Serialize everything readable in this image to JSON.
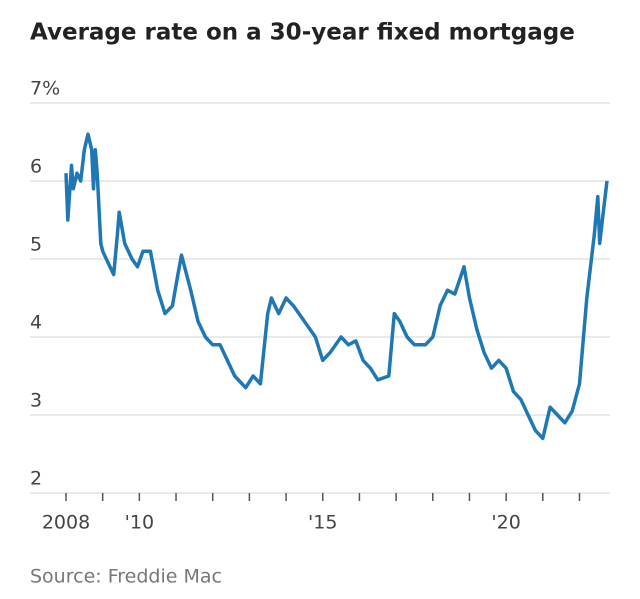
{
  "chart_data": {
    "type": "line",
    "title": "Average rate on a 30-year fixed mortgage",
    "source": "Source: Freddie Mac",
    "x": [
      2008.0,
      2008.05,
      2008.15,
      2008.2,
      2008.3,
      2008.4,
      2008.5,
      2008.6,
      2008.7,
      2008.75,
      2008.8,
      2008.85,
      2008.95,
      2009.0,
      2009.1,
      2009.3,
      2009.4,
      2009.45,
      2009.6,
      2009.8,
      2009.95,
      2010.1,
      2010.3,
      2010.5,
      2010.7,
      2010.9,
      2011.05,
      2011.15,
      2011.4,
      2011.6,
      2011.8,
      2012.0,
      2012.2,
      2012.4,
      2012.6,
      2012.9,
      2013.1,
      2013.3,
      2013.5,
      2013.6,
      2013.8,
      2014.0,
      2014.2,
      2014.5,
      2014.8,
      2015.0,
      2015.2,
      2015.5,
      2015.7,
      2015.9,
      2016.1,
      2016.3,
      2016.5,
      2016.8,
      2016.95,
      2017.1,
      2017.3,
      2017.5,
      2017.8,
      2018.0,
      2018.2,
      2018.4,
      2018.6,
      2018.85,
      2019.0,
      2019.2,
      2019.4,
      2019.6,
      2019.8,
      2020.0,
      2020.2,
      2020.4,
      2020.6,
      2020.8,
      2021.0,
      2021.2,
      2021.4,
      2021.6,
      2021.8,
      2022.0,
      2022.2,
      2022.4,
      2022.5,
      2022.55,
      2022.65,
      2022.75
    ],
    "series": [
      {
        "name": "30-year fixed",
        "color": "#1f78b4",
        "values": [
          6.1,
          5.5,
          6.2,
          5.9,
          6.1,
          6.0,
          6.4,
          6.6,
          6.4,
          5.9,
          6.4,
          6.1,
          5.2,
          5.1,
          5.0,
          4.8,
          5.3,
          5.6,
          5.2,
          5.0,
          4.9,
          5.1,
          5.1,
          4.6,
          4.3,
          4.4,
          4.8,
          5.05,
          4.6,
          4.2,
          4.0,
          3.9,
          3.9,
          3.7,
          3.5,
          3.35,
          3.5,
          3.4,
          4.3,
          4.5,
          4.3,
          4.5,
          4.4,
          4.2,
          4.0,
          3.7,
          3.8,
          4.0,
          3.9,
          3.95,
          3.7,
          3.6,
          3.45,
          3.5,
          4.3,
          4.2,
          4.0,
          3.9,
          3.9,
          4.0,
          4.4,
          4.6,
          4.55,
          4.9,
          4.5,
          4.1,
          3.8,
          3.6,
          3.7,
          3.6,
          3.3,
          3.2,
          3.0,
          2.8,
          2.7,
          3.1,
          3.0,
          2.9,
          3.05,
          3.4,
          4.5,
          5.3,
          5.8,
          5.2,
          5.6,
          6.0
        ]
      }
    ],
    "xlim": [
      2008,
      2022.75
    ],
    "xticks": [
      {
        "value": 2008,
        "label": "2008"
      },
      {
        "value": 2010,
        "label": "'10"
      },
      {
        "value": 2015,
        "label": "'15"
      },
      {
        "value": 2020,
        "label": "'20"
      }
    ],
    "xminor_ticks": [
      2009,
      2011,
      2012,
      2013,
      2014,
      2016,
      2017,
      2018,
      2019,
      2021,
      2022
    ],
    "ylim": [
      2,
      7
    ],
    "yticks": [
      {
        "value": 7,
        "label": "7%"
      },
      6,
      5,
      4,
      3,
      2
    ],
    "grid": true
  }
}
